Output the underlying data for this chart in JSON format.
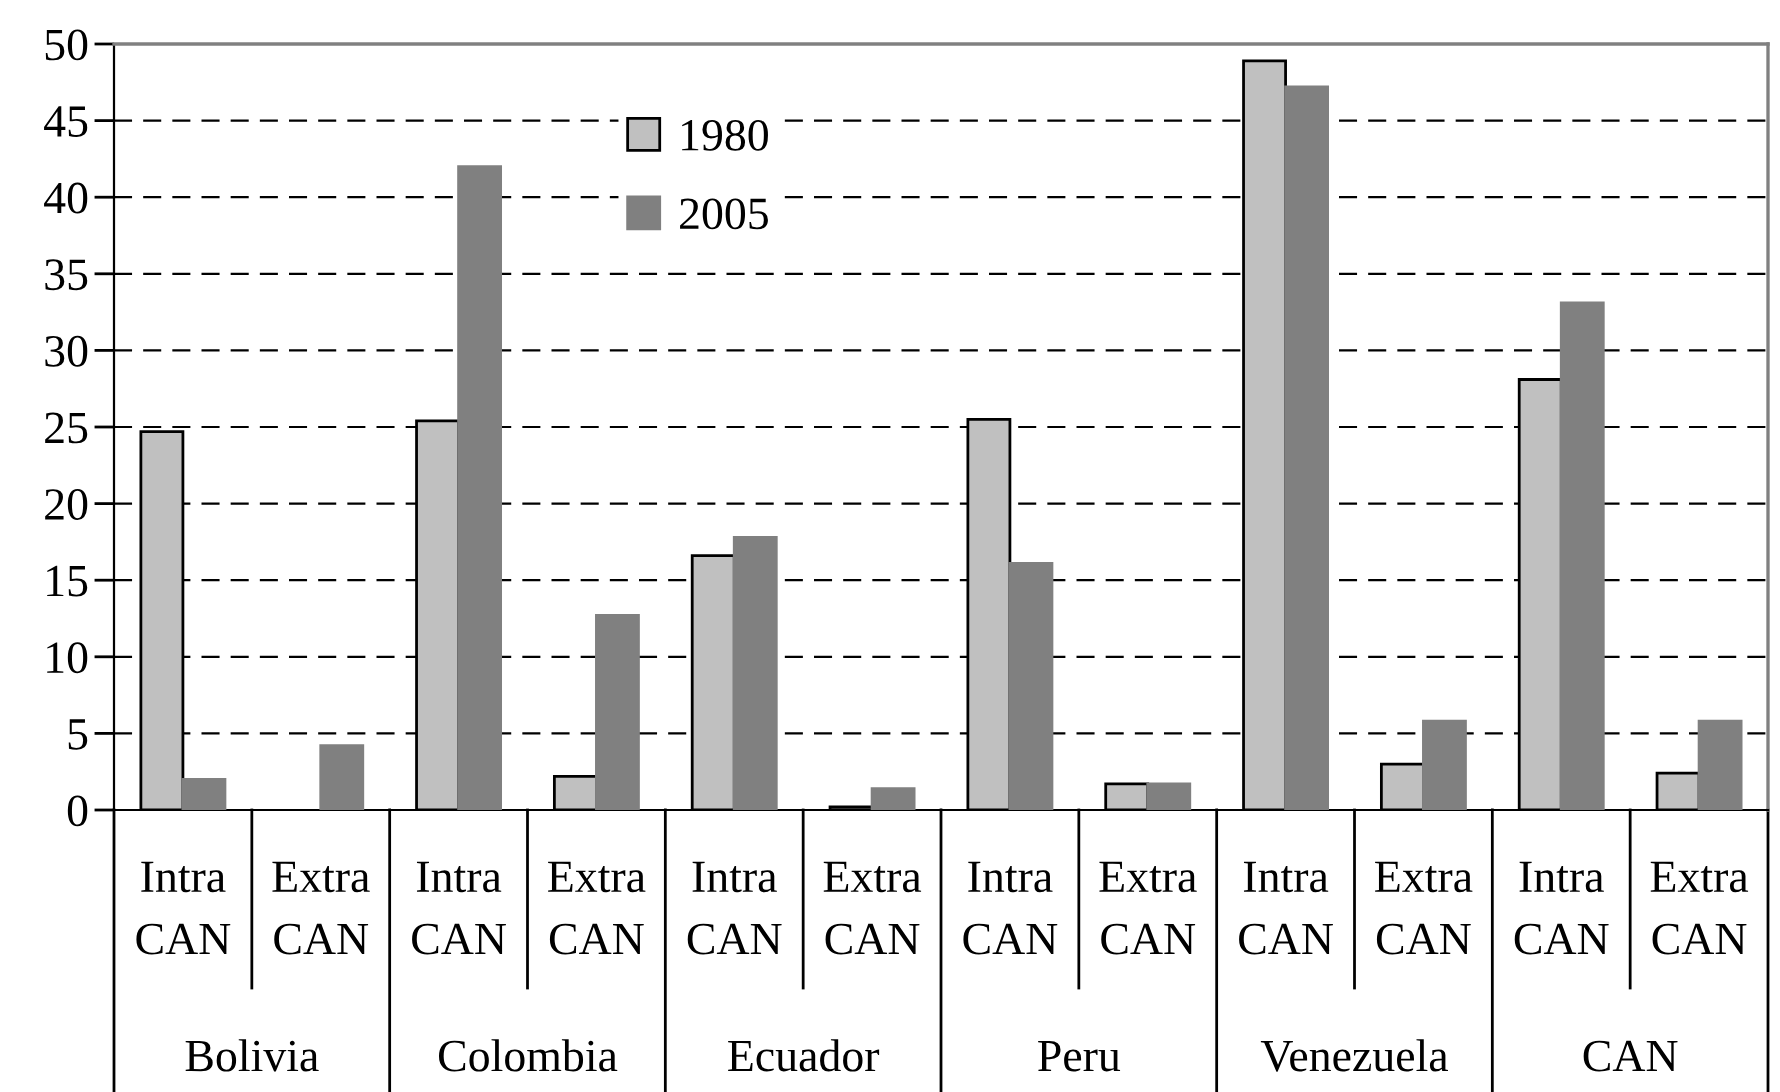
{
  "chart_data": {
    "type": "bar",
    "categories": [
      "Intra CAN",
      "Extra CAN",
      "Intra CAN",
      "Extra CAN",
      "Intra CAN",
      "Extra CAN",
      "Intra CAN",
      "Extra CAN",
      "Intra CAN",
      "Extra CAN",
      "Intra CAN",
      "Extra CAN"
    ],
    "series": [
      {
        "name": "1980",
        "color": "#c0c0c0",
        "values": [
          24.7,
          null,
          25.4,
          2.2,
          16.6,
          0.2,
          25.5,
          1.7,
          48.9,
          3.0,
          28.1,
          2.4
        ]
      },
      {
        "name": "2005",
        "color": "#808080",
        "values": [
          2.0,
          4.2,
          42.0,
          12.7,
          17.8,
          1.4,
          16.1,
          1.7,
          47.2,
          5.8,
          33.1,
          5.8
        ]
      }
    ],
    "annotations": [
      "Bolivia",
      "Colombia",
      "Ecuador",
      "Peru",
      "Venezuela",
      "CAN"
    ],
    "ylim": [
      0,
      50
    ],
    "yticks": [
      0,
      5,
      10,
      15,
      20,
      25,
      30,
      35,
      40,
      45,
      50
    ],
    "grid": "y",
    "legend": "top"
  }
}
